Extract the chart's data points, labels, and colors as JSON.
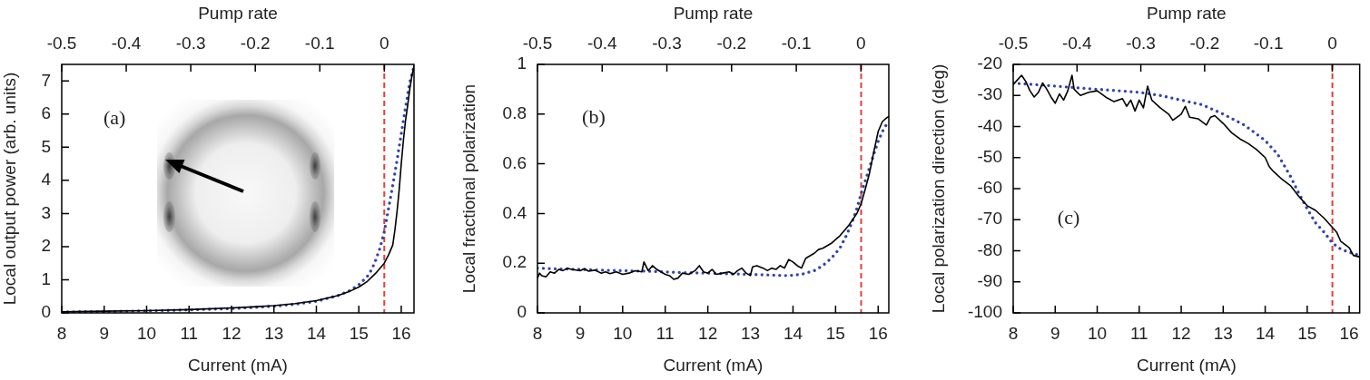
{
  "chart_data": [
    {
      "type": "line",
      "annotations": [
        "(a)"
      ],
      "xlabel": "Current (mA)",
      "x2label": "Pump rate",
      "ylabel": "Local output power (arb. units)",
      "xlim": [
        8,
        16.3
      ],
      "xticks": [
        8,
        9,
        10,
        11,
        12,
        13,
        14,
        15,
        16
      ],
      "x2lim": [
        -0.5,
        0.046
      ],
      "x2ticks": [
        -0.5,
        -0.4,
        -0.3,
        -0.2,
        -0.1,
        0
      ],
      "ylim": [
        0,
        7.5
      ],
      "yticks": [
        0,
        1,
        2,
        3,
        4,
        5,
        6,
        7
      ],
      "ref_lines": [
        {
          "axis": "x",
          "value": 15.6,
          "color": "#e0403c",
          "line_style": "dashed"
        }
      ],
      "series": [
        {
          "color": "#000000",
          "line_style": "solid",
          "x": [
            8,
            9,
            10,
            11,
            12,
            12.5,
            13,
            13.5,
            14,
            14.5,
            14.8,
            15,
            15.2,
            15.4,
            15.6,
            15.7,
            15.8,
            15.85,
            15.9,
            15.95,
            16,
            16.05,
            16.1,
            16.15,
            16.2,
            16.25,
            16.3
          ],
          "values": [
            0.03,
            0.05,
            0.07,
            0.1,
            0.15,
            0.18,
            0.22,
            0.28,
            0.37,
            0.52,
            0.66,
            0.78,
            0.95,
            1.2,
            1.5,
            1.75,
            2.05,
            2.5,
            3.05,
            3.7,
            4.5,
            5.2,
            5.8,
            6.25,
            6.75,
            7.15,
            7.45
          ]
        },
        {
          "color": "#3344aa",
          "line_style": "dotted",
          "x": [
            8,
            9,
            10,
            11,
            12,
            13,
            13.5,
            14,
            14.5,
            14.8,
            15,
            15.2,
            15.3,
            15.4,
            15.5,
            15.6,
            15.7,
            15.8,
            15.9,
            16,
            16.1,
            16.2,
            16.3
          ],
          "values": [
            0.03,
            0.04,
            0.06,
            0.09,
            0.13,
            0.2,
            0.26,
            0.35,
            0.52,
            0.68,
            0.85,
            1.1,
            1.3,
            1.6,
            1.96,
            2.45,
            3.15,
            3.85,
            4.6,
            5.4,
            6.2,
            6.95,
            7.45
          ]
        }
      ]
    },
    {
      "type": "line",
      "annotations": [
        "(b)"
      ],
      "xlabel": "Current (mA)",
      "x2label": "Pump rate",
      "ylabel": "Local fractional polarization",
      "xlim": [
        8,
        16.25
      ],
      "xticks": [
        8,
        9,
        10,
        11,
        12,
        13,
        14,
        15,
        16
      ],
      "x2lim": [
        -0.5,
        0.043
      ],
      "x2ticks": [
        -0.5,
        -0.4,
        -0.3,
        -0.2,
        -0.1,
        0
      ],
      "ylim": [
        0,
        1
      ],
      "yticks": [
        0,
        0.2,
        0.4,
        0.6,
        0.8,
        1
      ],
      "ref_lines": [
        {
          "axis": "x",
          "value": 15.6,
          "color": "#e0403c",
          "line_style": "dashed"
        }
      ],
      "series": [
        {
          "color": "#000000",
          "line_style": "solid",
          "x": [
            8.0,
            8.05,
            8.1,
            8.2,
            8.3,
            8.4,
            8.5,
            8.6,
            8.7,
            8.8,
            9.0,
            9.1,
            9.2,
            9.35,
            9.5,
            9.6,
            9.7,
            9.85,
            10.0,
            10.15,
            10.3,
            10.45,
            10.5,
            10.6,
            10.7,
            10.8,
            10.9,
            11.0,
            11.1,
            11.2,
            11.3,
            11.4,
            11.55,
            11.7,
            11.8,
            11.9,
            12.0,
            12.1,
            12.2,
            12.35,
            12.5,
            12.6,
            12.7,
            12.8,
            12.9,
            13.0,
            13.05,
            13.15,
            13.3,
            13.4,
            13.5,
            13.6,
            13.7,
            13.8,
            13.9,
            14.0,
            14.1,
            14.2,
            14.3,
            14.4,
            14.5,
            14.6,
            14.7,
            14.8,
            14.9,
            15.0,
            15.1,
            15.2,
            15.3,
            15.4,
            15.5,
            15.6,
            15.7,
            15.8,
            15.9,
            16.0,
            16.1,
            16.2,
            16.25
          ],
          "values": [
            0.14,
            0.16,
            0.15,
            0.145,
            0.165,
            0.16,
            0.175,
            0.17,
            0.18,
            0.175,
            0.17,
            0.178,
            0.168,
            0.172,
            0.16,
            0.165,
            0.158,
            0.165,
            0.155,
            0.16,
            0.17,
            0.165,
            0.205,
            0.17,
            0.19,
            0.175,
            0.165,
            0.155,
            0.15,
            0.135,
            0.14,
            0.16,
            0.155,
            0.17,
            0.19,
            0.165,
            0.16,
            0.175,
            0.155,
            0.16,
            0.165,
            0.155,
            0.17,
            0.18,
            0.16,
            0.15,
            0.185,
            0.19,
            0.18,
            0.17,
            0.18,
            0.175,
            0.19,
            0.18,
            0.215,
            0.205,
            0.19,
            0.18,
            0.22,
            0.23,
            0.24,
            0.255,
            0.26,
            0.27,
            0.28,
            0.295,
            0.31,
            0.33,
            0.35,
            0.375,
            0.4,
            0.44,
            0.5,
            0.565,
            0.65,
            0.73,
            0.77,
            0.785,
            0.79
          ]
        },
        {
          "color": "#3344aa",
          "line_style": "dotted",
          "x": [
            8,
            8.5,
            9,
            9.5,
            10,
            10.5,
            11,
            11.5,
            12,
            12.5,
            13,
            13.5,
            13.9,
            14.2,
            14.5,
            14.7,
            14.9,
            15.1,
            15.25,
            15.4,
            15.5,
            15.6,
            15.75,
            15.9,
            16,
            16.1,
            16.2,
            16.25
          ],
          "values": [
            0.18,
            0.177,
            0.175,
            0.172,
            0.17,
            0.168,
            0.165,
            0.162,
            0.16,
            0.157,
            0.155,
            0.152,
            0.15,
            0.155,
            0.17,
            0.19,
            0.22,
            0.26,
            0.31,
            0.37,
            0.42,
            0.48,
            0.56,
            0.64,
            0.69,
            0.73,
            0.76,
            0.77
          ]
        }
      ]
    },
    {
      "type": "line",
      "annotations": [
        "(c)"
      ],
      "xlabel": "Current (mA)",
      "x2label": "Pump rate",
      "ylabel": "Local polarization direction (deg)",
      "xlim": [
        8,
        16.25
      ],
      "xticks": [
        8,
        9,
        10,
        11,
        12,
        13,
        14,
        15,
        16
      ],
      "x2lim": [
        -0.5,
        0.043
      ],
      "x2ticks": [
        -0.5,
        -0.4,
        -0.3,
        -0.2,
        -0.1,
        0
      ],
      "ylim": [
        -100,
        -20
      ],
      "yticks": [
        -100,
        -90,
        -80,
        -70,
        -60,
        -50,
        -40,
        -30,
        -20
      ],
      "ref_lines": [
        {
          "axis": "x",
          "value": 15.6,
          "color": "#e0403c",
          "line_style": "dashed"
        }
      ],
      "series": [
        {
          "color": "#000000",
          "line_style": "solid",
          "x": [
            8.0,
            8.1,
            8.2,
            8.3,
            8.4,
            8.5,
            8.6,
            8.7,
            8.8,
            8.9,
            9.0,
            9.1,
            9.2,
            9.3,
            9.4,
            9.45,
            9.6,
            9.8,
            10.0,
            10.2,
            10.4,
            10.6,
            10.7,
            10.8,
            10.9,
            11.0,
            11.1,
            11.2,
            11.3,
            11.5,
            11.7,
            11.8,
            12.0,
            12.1,
            12.2,
            12.4,
            12.6,
            12.7,
            12.8,
            13.0,
            13.2,
            13.4,
            13.6,
            13.8,
            14.0,
            14.1,
            14.2,
            14.4,
            14.6,
            14.8,
            15.0,
            15.2,
            15.4,
            15.6,
            15.7,
            15.8,
            16.0,
            16.1,
            16.25
          ],
          "values": [
            -26.5,
            -25,
            -23.5,
            -25.5,
            -28.5,
            -30.5,
            -29,
            -26,
            -28,
            -30.5,
            -32.5,
            -29.5,
            -31.5,
            -28.5,
            -23.5,
            -28,
            -30,
            -29,
            -28.5,
            -30.5,
            -32,
            -31,
            -33.5,
            -31.5,
            -35,
            -31.5,
            -34,
            -27,
            -31.5,
            -34,
            -36,
            -38,
            -36,
            -33.5,
            -37,
            -37.5,
            -39.5,
            -37,
            -36.5,
            -39,
            -42,
            -44,
            -45.5,
            -47.5,
            -50,
            -53,
            -54.5,
            -57,
            -59,
            -62.5,
            -65.5,
            -67,
            -69.5,
            -72.5,
            -74,
            -77,
            -79,
            -81.5,
            -82
          ]
        },
        {
          "color": "#3344aa",
          "line_style": "dotted",
          "x": [
            8,
            8.5,
            9,
            9.5,
            10,
            10.5,
            11,
            11.5,
            12,
            12.5,
            13,
            13.5,
            14,
            14.3,
            14.6,
            14.8,
            15,
            15.2,
            15.4,
            15.6,
            15.8,
            16,
            16.25
          ],
          "values": [
            -26,
            -26.5,
            -27,
            -27.5,
            -28,
            -28.5,
            -29,
            -30,
            -31.5,
            -33,
            -36,
            -39.5,
            -44.5,
            -49,
            -56,
            -61.5,
            -66.5,
            -71,
            -74,
            -77.5,
            -79.5,
            -80.5,
            -81.5
          ]
        }
      ]
    }
  ]
}
